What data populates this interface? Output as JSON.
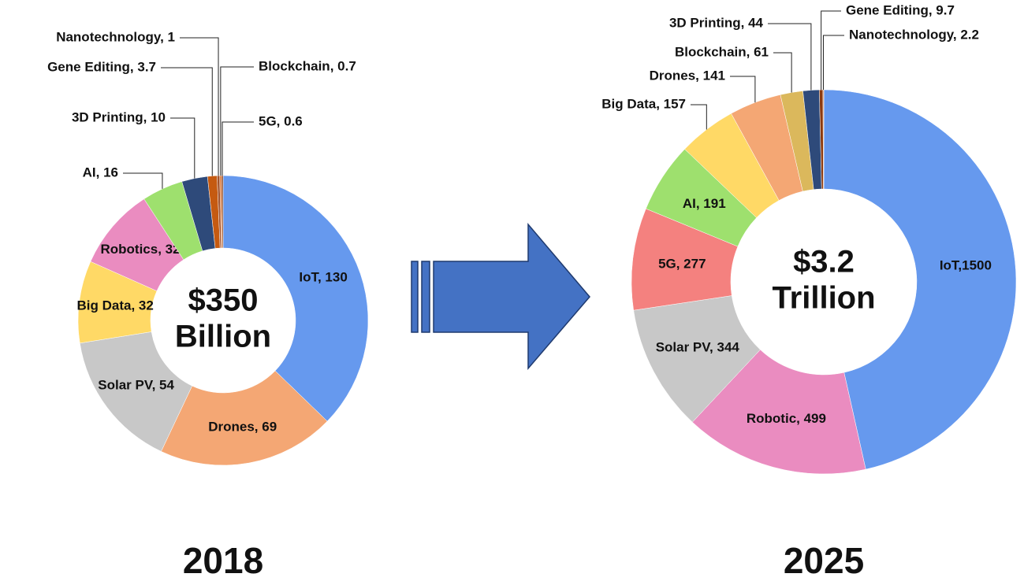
{
  "chart_data": [
    {
      "type": "pie",
      "year": "2018",
      "center_label": [
        "$350",
        "Billion"
      ],
      "value_labels": [
        "IoT, 130",
        "Drones, 69",
        "Solar PV, 54",
        "Big Data, 32",
        "Robotics, 32",
        "AI, 16",
        "3D Printing, 10",
        "Gene Editing, 3.7",
        "Nanotechnology, 1",
        "Blockchain, 0.7",
        "5G, 0.6"
      ],
      "values": [
        130,
        69,
        54,
        32,
        32,
        16,
        10,
        3.7,
        1,
        0.7,
        0.6
      ],
      "colors": [
        "#6699ee",
        "#f4a774",
        "#c8c8c8",
        "#ffd966",
        "#ea8cc0",
        "#9ee06e",
        "#2e4a7a",
        "#c55a11",
        "#a0522d",
        "#e07b39",
        "#8b3a0f"
      ]
    },
    {
      "type": "pie",
      "year": "2025",
      "center_label": [
        "$3.2",
        "Trillion"
      ],
      "value_labels": [
        "IoT,1500",
        "Robotic, 499",
        "Solar PV, 344",
        "5G, 277",
        "AI, 191",
        "Big Data, 157",
        "Drones, 141",
        "Blockchain, 61",
        "3D Printing, 44",
        "Gene Editing, 9.7",
        "Nanotechnology, 2.2"
      ],
      "values": [
        1500,
        499,
        344,
        277,
        191,
        157,
        141,
        61,
        44,
        9.7,
        2.2
      ],
      "colors": [
        "#6699ee",
        "#ea8cc0",
        "#c8c8c8",
        "#f4817f",
        "#9ee06e",
        "#ffd966",
        "#f4a774",
        "#dbb85c",
        "#2e4a7a",
        "#8b3a0f",
        "#e07b39"
      ]
    }
  ]
}
